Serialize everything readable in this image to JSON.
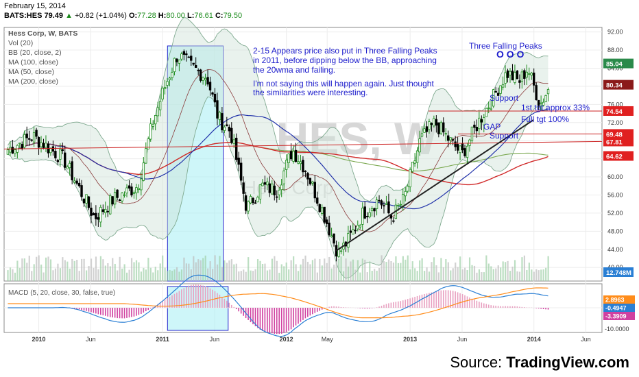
{
  "header": {
    "date": "February 15, 2014",
    "symbol": "BATS:HES",
    "last": "79.49",
    "change": "+0.82 (+1.04%)",
    "open_label": "O:",
    "open": "77.28",
    "high_label": "H:",
    "high": "80.00",
    "low_label": "L:",
    "low": "76.61",
    "close_label": "C:",
    "close": "79.50"
  },
  "legend": [
    "Hess Corp, W, BATS",
    "Vol (20)",
    "BB (20, close, 2)",
    "MA (100, close)",
    "MA (50, close)",
    "MA (200, close)"
  ],
  "macd_label": "MACD (5, 20, close, 30, false, true)",
  "watermark": "HES, W",
  "watermark_sub": "Hess Corp",
  "annotation": {
    "line1": "2-15 Appears price also put in Three Falling Peaks",
    "line2": "in 2011, before dipping below the BB, approaching",
    "line3": "the 20wma and failing.",
    "line4": "I'm not saying this will happen again. Just thought",
    "line5": "the similarities were interesting."
  },
  "labels": {
    "three_peaks": "Three Falling Peaks",
    "peaks_marks": "O  O O",
    "support1": "Support",
    "tgt1": "1st tgt approx 33%",
    "full_tgt": "Full tgt 100%",
    "gap": "GAP",
    "support2": "Support"
  },
  "source": {
    "prefix": "Source: ",
    "brand": "TradingView.com"
  },
  "colors": {
    "up": "#1a8a1a",
    "down": "#000000",
    "bb": "#7fa98f",
    "ma100": "#d12a2a",
    "ma50": "#2233aa",
    "ma200": "#7aa84f",
    "annotation": "#1c1ccc",
    "highlight": "#aef0f5",
    "macd_line": "#2a7fd4",
    "signal": "#ff8c1a",
    "hist_pos": "#e8a0c0",
    "hist_neg": "#d040a0",
    "resistance": "#cc2222",
    "trend": "#222222"
  },
  "chart_data": {
    "type": "candlestick",
    "title": "Hess Corp, W, BATS",
    "x_ticks": [
      "2010",
      "Jun",
      "2011",
      "Jun",
      "2012",
      "May",
      "2013",
      "Jun",
      "2014",
      "Jun"
    ],
    "y_ticks": [
      "92.00",
      "88.00",
      "84.00",
      "80.00",
      "76.00",
      "72.00",
      "68.00",
      "64.00",
      "60.00",
      "56.00",
      "52.00",
      "48.00",
      "44.00",
      "40.00"
    ],
    "ylim": [
      37,
      93
    ],
    "price_tags": [
      {
        "label": "85.04",
        "value": 85.04,
        "color": "#2a8a4a"
      },
      {
        "label": "80.34",
        "value": 80.34,
        "color": "#8b1a1a"
      },
      {
        "label": "74.54",
        "value": 74.54,
        "color": "#e02020"
      },
      {
        "label": "69.48",
        "value": 69.48,
        "color": "#e02020"
      },
      {
        "label": "67.81",
        "value": 67.81,
        "color": "#e02020"
      },
      {
        "label": "64.62",
        "value": 64.62,
        "color": "#e02020"
      },
      {
        "label": "12.748M",
        "value": 38.0,
        "color": "#2a7fd4"
      }
    ],
    "resistance_levels": [
      74.54,
      69.48,
      67.81
    ],
    "macd": {
      "y_ticks": [
        "-10.0000"
      ],
      "tags": [
        {
          "label": "2.8963",
          "color": "#ff8c1a"
        },
        {
          "label": "-0.4947",
          "color": "#2a7fd4"
        },
        {
          "label": "-3.3909",
          "color": "#d040a0"
        }
      ]
    },
    "anchors": [
      [
        2009.75,
        66,
        68
      ],
      [
        2009.95,
        69,
        70
      ],
      [
        2010.2,
        64,
        65
      ],
      [
        2010.45,
        51,
        53
      ],
      [
        2010.6,
        55,
        56
      ],
      [
        2010.8,
        58,
        60
      ],
      [
        2010.92,
        72,
        73
      ],
      [
        2011.02,
        80,
        81
      ],
      [
        2011.12,
        87,
        88
      ],
      [
        2011.25,
        84,
        86
      ],
      [
        2011.36,
        82,
        84
      ],
      [
        2011.45,
        73,
        75
      ],
      [
        2011.55,
        70,
        72
      ],
      [
        2011.68,
        53,
        55
      ],
      [
        2011.8,
        58,
        60
      ],
      [
        2011.92,
        57,
        58
      ],
      [
        2012.05,
        66,
        67
      ],
      [
        2012.15,
        62,
        63
      ],
      [
        2012.3,
        52,
        53
      ],
      [
        2012.42,
        43,
        44
      ],
      [
        2012.5,
        46,
        48
      ],
      [
        2012.62,
        52,
        53
      ],
      [
        2012.75,
        55,
        56
      ],
      [
        2012.85,
        51,
        52
      ],
      [
        2012.95,
        55,
        56
      ],
      [
        2013.08,
        68,
        69
      ],
      [
        2013.2,
        72,
        73
      ],
      [
        2013.32,
        68,
        70
      ],
      [
        2013.42,
        65,
        66
      ],
      [
        2013.55,
        72,
        73
      ],
      [
        2013.68,
        78,
        79
      ],
      [
        2013.78,
        83,
        85
      ],
      [
        2013.88,
        81,
        82
      ],
      [
        2013.95,
        84,
        85
      ],
      [
        2014.05,
        76,
        77
      ],
      [
        2014.12,
        79.5,
        80
      ]
    ],
    "anchors_format": "[year, close, high] — smoothed weekly path read off the chart"
  }
}
